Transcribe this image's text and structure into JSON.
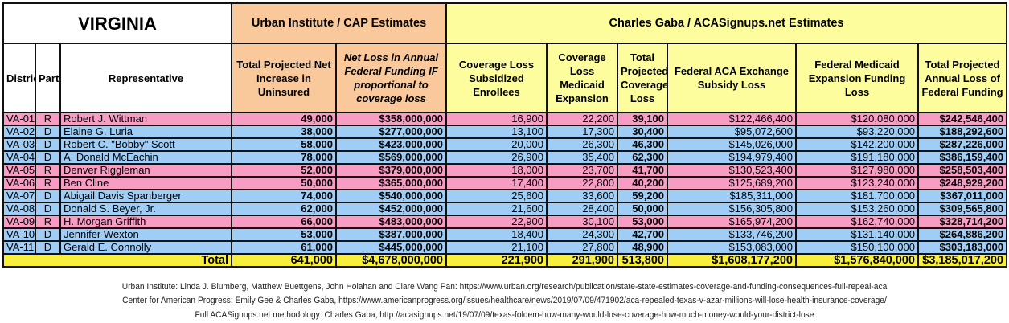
{
  "title": "VIRGINIA",
  "groups": {
    "urban": "Urban Institute / CAP Estimates",
    "gaba": "Charles Gaba / ACASignups.net Estimates"
  },
  "columns": [
    "District",
    "Party",
    "Representative",
    "Total Projected Net Increase in Uninsured",
    "Net Loss in Annual Federal Funding IF proportional to coverage loss",
    "Coverage Loss Subsidized Enrollees",
    "Coverage Loss Medicaid Expansion",
    "Total Projected Coverage Loss",
    "Federal ACA Exchange Subsidy Loss",
    "Federal Medicaid Expansion Funding Loss",
    "Total Projected Annual Loss of Federal Funding"
  ],
  "party_colors": {
    "R": "#f79cc3",
    "D": "#9fcdf6"
  },
  "rows": [
    [
      "VA-01",
      "R",
      "Robert J. Wittman",
      "49,000",
      "$358,000,000",
      "16,900",
      "22,200",
      "39,100",
      "$122,466,400",
      "$120,080,000",
      "$242,546,400"
    ],
    [
      "VA-02",
      "D",
      "Elaine G. Luria",
      "38,000",
      "$277,000,000",
      "13,100",
      "17,300",
      "30,400",
      "$95,072,600",
      "$93,220,000",
      "$188,292,600"
    ],
    [
      "VA-03",
      "D",
      "Robert C. \"Bobby\" Scott",
      "58,000",
      "$423,000,000",
      "20,000",
      "26,300",
      "46,300",
      "$145,026,000",
      "$142,200,000",
      "$287,226,000"
    ],
    [
      "VA-04",
      "D",
      "A. Donald McEachin",
      "78,000",
      "$569,000,000",
      "26,900",
      "35,400",
      "62,300",
      "$194,979,400",
      "$191,180,000",
      "$386,159,400"
    ],
    [
      "VA-05",
      "R",
      "Denver Riggleman",
      "52,000",
      "$379,000,000",
      "18,000",
      "23,700",
      "41,700",
      "$130,523,400",
      "$127,980,000",
      "$258,503,400"
    ],
    [
      "VA-06",
      "R",
      "Ben Cline",
      "50,000",
      "$365,000,000",
      "17,400",
      "22,800",
      "40,200",
      "$125,689,200",
      "$123,240,000",
      "$248,929,200"
    ],
    [
      "VA-07",
      "D",
      "Abigail Davis Spanberger",
      "74,000",
      "$540,000,000",
      "25,600",
      "33,600",
      "59,200",
      "$185,311,000",
      "$181,700,000",
      "$367,011,000"
    ],
    [
      "VA-08",
      "D",
      "Donald S. Beyer, Jr.",
      "62,000",
      "$452,000,000",
      "21,600",
      "28,400",
      "50,000",
      "$156,305,800",
      "$153,260,000",
      "$309,565,800"
    ],
    [
      "VA-09",
      "R",
      "H. Morgan Griffith",
      "66,000",
      "$483,000,000",
      "22,900",
      "30,100",
      "53,000",
      "$165,974,200",
      "$162,740,000",
      "$328,714,200"
    ],
    [
      "VA-10",
      "D",
      "Jennifer Wexton",
      "53,000",
      "$387,000,000",
      "18,400",
      "24,300",
      "42,700",
      "$133,746,200",
      "$131,140,000",
      "$264,886,200"
    ],
    [
      "VA-11",
      "D",
      "Gerald E. Connolly",
      "61,000",
      "$445,000,000",
      "21,100",
      "27,800",
      "48,900",
      "$153,083,000",
      "$150,100,000",
      "$303,183,000"
    ]
  ],
  "total": {
    "label": "Total",
    "values": [
      "641,000",
      "$4,678,000,000",
      "221,900",
      "291,900",
      "513,800",
      "$1,608,177,200",
      "$1,576,840,000",
      "$3,185,017,200"
    ]
  },
  "footer": [
    "Urban Institute: Linda J. Blumberg, Matthew Buettgens, John Holahan and Clare Wang Pan: https://www.urban.org/research/publication/state-state-estimates-coverage-and-funding-consequences-full-repeal-aca",
    "Center for American Progress: Emily Gee & Charles Gaba, https://www.americanprogress.org/issues/healthcare/news/2019/07/09/471902/aca-repealed-texas-v-azar-millions-will-lose-health-insurance-coverage/",
    "Full ACASignups.net methodology: Charles Gaba, http://acasignups.net/19/07/09/texas-foldem-how-many-would-lose-coverage-how-much-money-would-your-district-lose"
  ]
}
